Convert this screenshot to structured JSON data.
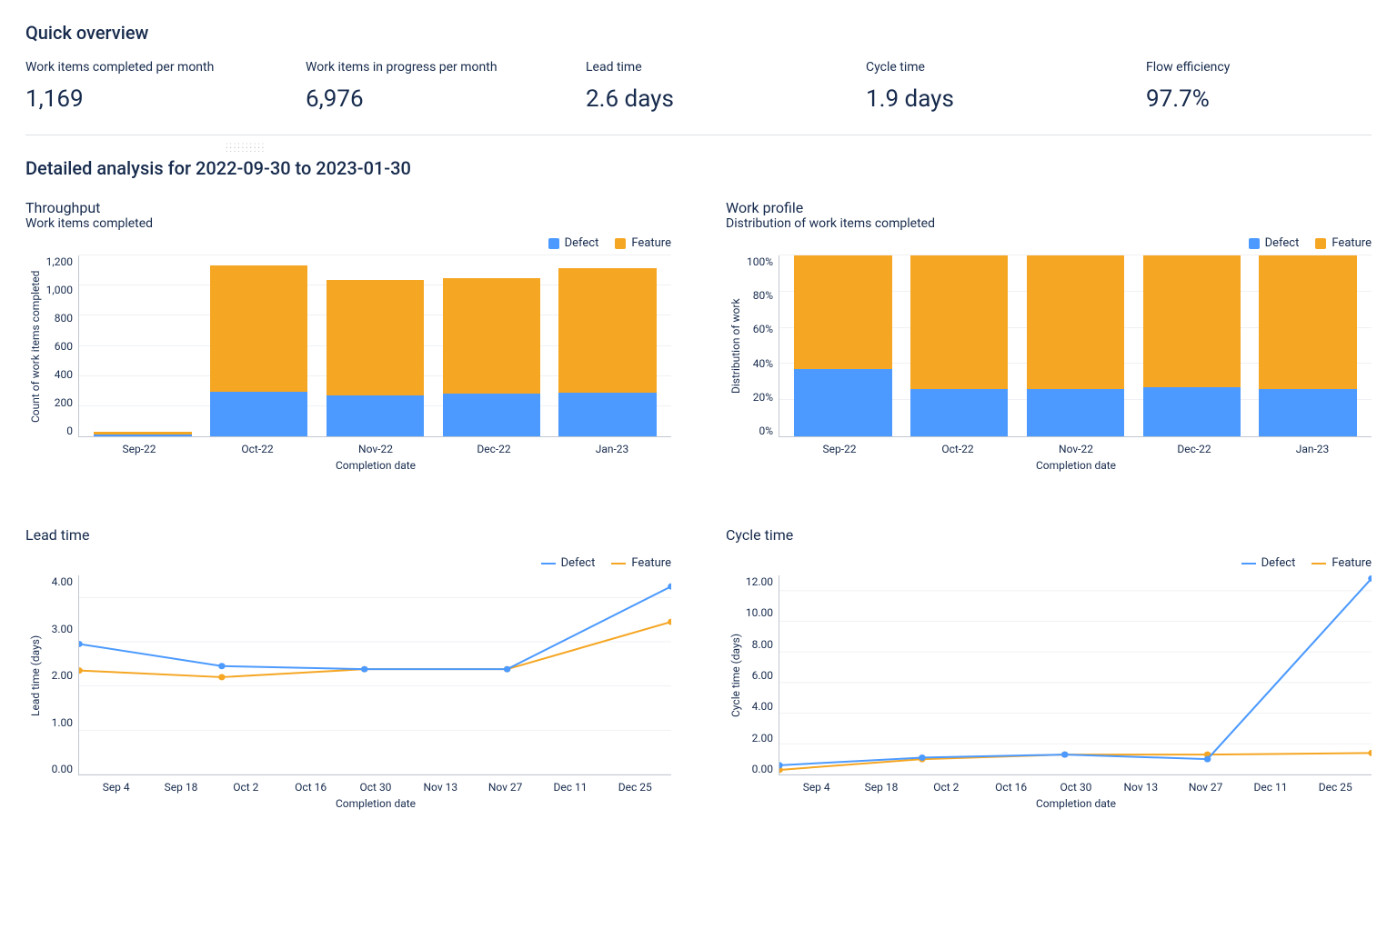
{
  "colors": {
    "defect": "#4c9aff",
    "feature": "#f5a623",
    "text": "#172b4d",
    "grid": "#f0f1f4",
    "axis": "#c1c7d0",
    "background": "#ffffff"
  },
  "overview": {
    "title": "Quick overview",
    "metrics": [
      {
        "label": "Work items completed per month",
        "value": "1,169"
      },
      {
        "label": "Work items in progress per month",
        "value": "6,976"
      },
      {
        "label": "Lead time",
        "value": "2.6 days"
      },
      {
        "label": "Cycle time",
        "value": "1.9 days"
      },
      {
        "label": "Flow efficiency",
        "value": "97.7%"
      }
    ]
  },
  "detailed": {
    "title": "Detailed analysis for 2022-09-30 to 2023-01-30"
  },
  "legend_series": [
    "Defect",
    "Feature"
  ],
  "throughput": {
    "title": "Throughput",
    "subtitle": "Work items completed",
    "type": "stacked-bar",
    "y_label": "Count of work items completed",
    "x_label": "Completion date",
    "y_max": 1300,
    "y_ticks": [
      "0",
      "200",
      "400",
      "600",
      "800",
      "1,000",
      "1,200"
    ],
    "categories": [
      "Sep-22",
      "Oct-22",
      "Nov-22",
      "Dec-22",
      "Jan-23"
    ],
    "defect": [
      15,
      320,
      295,
      310,
      315
    ],
    "feature": [
      20,
      910,
      830,
      830,
      895
    ]
  },
  "work_profile": {
    "title": "Work profile",
    "subtitle": "Distribution of work items completed",
    "type": "stacked-bar-100",
    "y_label": "Distribution of work",
    "x_label": "Completion date",
    "y_max": 100,
    "y_ticks": [
      "0%",
      "20%",
      "40%",
      "60%",
      "80%",
      "100%"
    ],
    "categories": [
      "Sep-22",
      "Oct-22",
      "Nov-22",
      "Dec-22",
      "Jan-23"
    ],
    "defect_pct": [
      37,
      26,
      26,
      27,
      26
    ],
    "feature_pct": [
      63,
      74,
      74,
      73,
      74
    ]
  },
  "lead_time": {
    "title": "Lead time",
    "type": "line",
    "y_label": "Lead time (days)",
    "x_label": "Completion date",
    "y_min": 0,
    "y_max": 4.5,
    "y_ticks": [
      "0.00",
      "1.00",
      "2.00",
      "3.00",
      "4.00"
    ],
    "x_ticks": [
      "Sep 4",
      "Sep 18",
      "Oct 2",
      "Oct 16",
      "Oct 30",
      "Nov 13",
      "Nov 27",
      "Dec 11",
      "Dec 25"
    ],
    "series": {
      "defect": {
        "x": [
          0,
          2,
          4,
          6,
          8.3
        ],
        "y": [
          2.95,
          2.45,
          2.38,
          2.38,
          4.25
        ]
      },
      "feature": {
        "x": [
          0,
          2,
          4,
          6,
          8.3
        ],
        "y": [
          2.35,
          2.2,
          2.38,
          2.38,
          3.45
        ]
      }
    },
    "x_range": [
      0,
      8.3
    ]
  },
  "cycle_time": {
    "title": "Cycle time",
    "type": "line",
    "y_label": "Cycle time (days)",
    "x_label": "Completion date",
    "y_min": 0,
    "y_max": 13,
    "y_ticks": [
      "0.00",
      "2.00",
      "4.00",
      "6.00",
      "8.00",
      "10.00",
      "12.00"
    ],
    "x_ticks": [
      "Sep 4",
      "Sep 18",
      "Oct 2",
      "Oct 16",
      "Oct 30",
      "Nov 13",
      "Nov 27",
      "Dec 11",
      "Dec 25"
    ],
    "series": {
      "defect": {
        "x": [
          0,
          2,
          4,
          6,
          8.3
        ],
        "y": [
          0.6,
          1.1,
          1.3,
          1.0,
          12.8
        ]
      },
      "feature": {
        "x": [
          0,
          2,
          4,
          6,
          8.3
        ],
        "y": [
          0.3,
          1.0,
          1.3,
          1.3,
          1.4
        ]
      }
    },
    "x_range": [
      0,
      8.3
    ]
  }
}
